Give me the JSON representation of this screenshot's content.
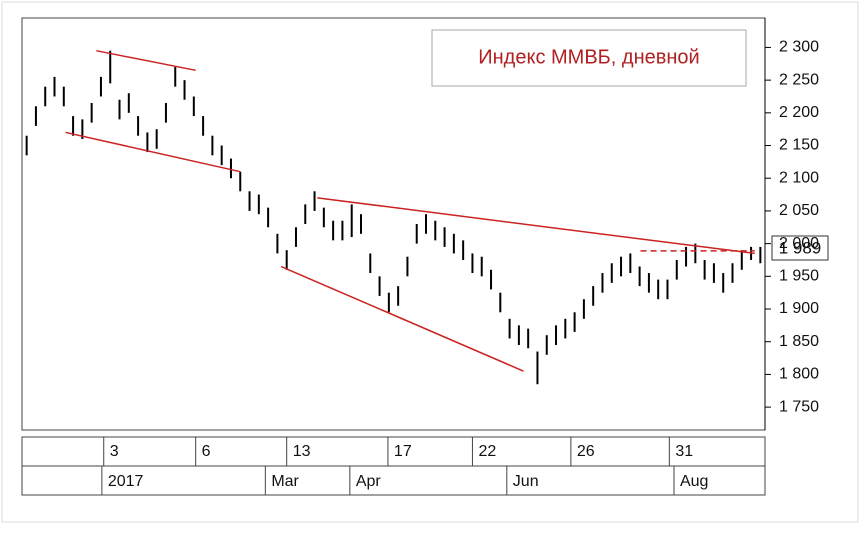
{
  "chart_data": {
    "type": "ohlc",
    "title": "Индекс ММВБ, дневной",
    "color": "#000000",
    "line_color": "#cc2222",
    "high": [
      2165,
      2210,
      2240,
      2255,
      2240,
      2195,
      2190,
      2215,
      2255,
      2295,
      2220,
      2230,
      2195,
      2170,
      2175,
      2215,
      2270,
      2250,
      2225,
      2195,
      2165,
      2150,
      2130,
      2110,
      2080,
      2075,
      2055,
      2015,
      1990,
      2025,
      2060,
      2080,
      2055,
      2035,
      2035,
      2060,
      2045,
      1985,
      1950,
      1925,
      1935,
      1980,
      2030,
      2045,
      2035,
      2025,
      2015,
      2005,
      1985,
      1980,
      1960,
      1925,
      1885,
      1875,
      1870,
      1835,
      1860,
      1875,
      1885,
      1895,
      1915,
      1935,
      1955,
      1970,
      1980,
      1985,
      1965,
      1955,
      1945,
      1945,
      1975,
      1995,
      2000,
      1975,
      1970,
      1955,
      1970,
      1990,
      1995,
      1995
    ],
    "low": [
      2135,
      2180,
      2210,
      2225,
      2210,
      2165,
      2160,
      2185,
      2225,
      2245,
      2190,
      2200,
      2165,
      2140,
      2145,
      2185,
      2240,
      2220,
      2195,
      2165,
      2135,
      2120,
      2100,
      2080,
      2050,
      2045,
      2025,
      1985,
      1960,
      1995,
      2030,
      2050,
      2025,
      2005,
      2005,
      2010,
      2015,
      1955,
      1920,
      1895,
      1905,
      1950,
      2000,
      2015,
      2005,
      1995,
      1985,
      1975,
      1955,
      1950,
      1930,
      1895,
      1855,
      1845,
      1840,
      1785,
      1830,
      1845,
      1855,
      1865,
      1885,
      1905,
      1925,
      1940,
      1950,
      1955,
      1935,
      1925,
      1915,
      1915,
      1945,
      1965,
      1970,
      1945,
      1940,
      1925,
      1940,
      1960,
      1975,
      1970
    ],
    "ylim": [
      1715,
      2345
    ],
    "yticks": [
      {
        "value": 1750,
        "label": "1 750"
      },
      {
        "value": 1800,
        "label": "1 800"
      },
      {
        "value": 1850,
        "label": "1 850"
      },
      {
        "value": 1900,
        "label": "1 900"
      },
      {
        "value": 1950,
        "label": "1 950"
      },
      {
        "value": 2000,
        "label": "2 000"
      },
      {
        "value": 2050,
        "label": "2 050"
      },
      {
        "value": 2100,
        "label": "2 100"
      },
      {
        "value": 2150,
        "label": "2 150"
      },
      {
        "value": 2200,
        "label": "2 200"
      },
      {
        "value": 2250,
        "label": "2 250"
      },
      {
        "value": 2300,
        "label": "2 300"
      }
    ],
    "last_value": {
      "value": 1989,
      "label": "1 989"
    },
    "xlim": [
      -0.5,
      79.5
    ],
    "xticks": [
      {
        "value": 8.3,
        "label": "3"
      },
      {
        "value": 18.2,
        "label": "6"
      },
      {
        "value": 28,
        "label": "13"
      },
      {
        "value": 38.9,
        "label": "17"
      },
      {
        "value": 48,
        "label": "22"
      },
      {
        "value": 58.6,
        "label": "26"
      },
      {
        "value": 69.2,
        "label": "31"
      }
    ],
    "xticks2": [
      {
        "value": 8.1,
        "label": "2017"
      },
      {
        "value": 25.7,
        "label": "Mar"
      },
      {
        "value": 34.8,
        "label": "Apr"
      },
      {
        "value": 51.7,
        "label": "Jun"
      },
      {
        "value": 69.7,
        "label": "Aug"
      }
    ],
    "lines": [
      {
        "x": [
          7.5,
          18.2
        ],
        "y": [
          2295,
          2265
        ]
      },
      {
        "x": [
          4.2,
          23
        ],
        "y": [
          2170,
          2110
        ]
      },
      {
        "x": [
          31.3,
          78.4
        ],
        "y": [
          2070,
          1985
        ]
      },
      {
        "x": [
          27.4,
          53.5
        ],
        "y": [
          1965,
          1805
        ]
      },
      {
        "x": [
          66.1,
          78.4
        ],
        "y": [
          1989,
          1989
        ],
        "dashed": true
      }
    ]
  }
}
